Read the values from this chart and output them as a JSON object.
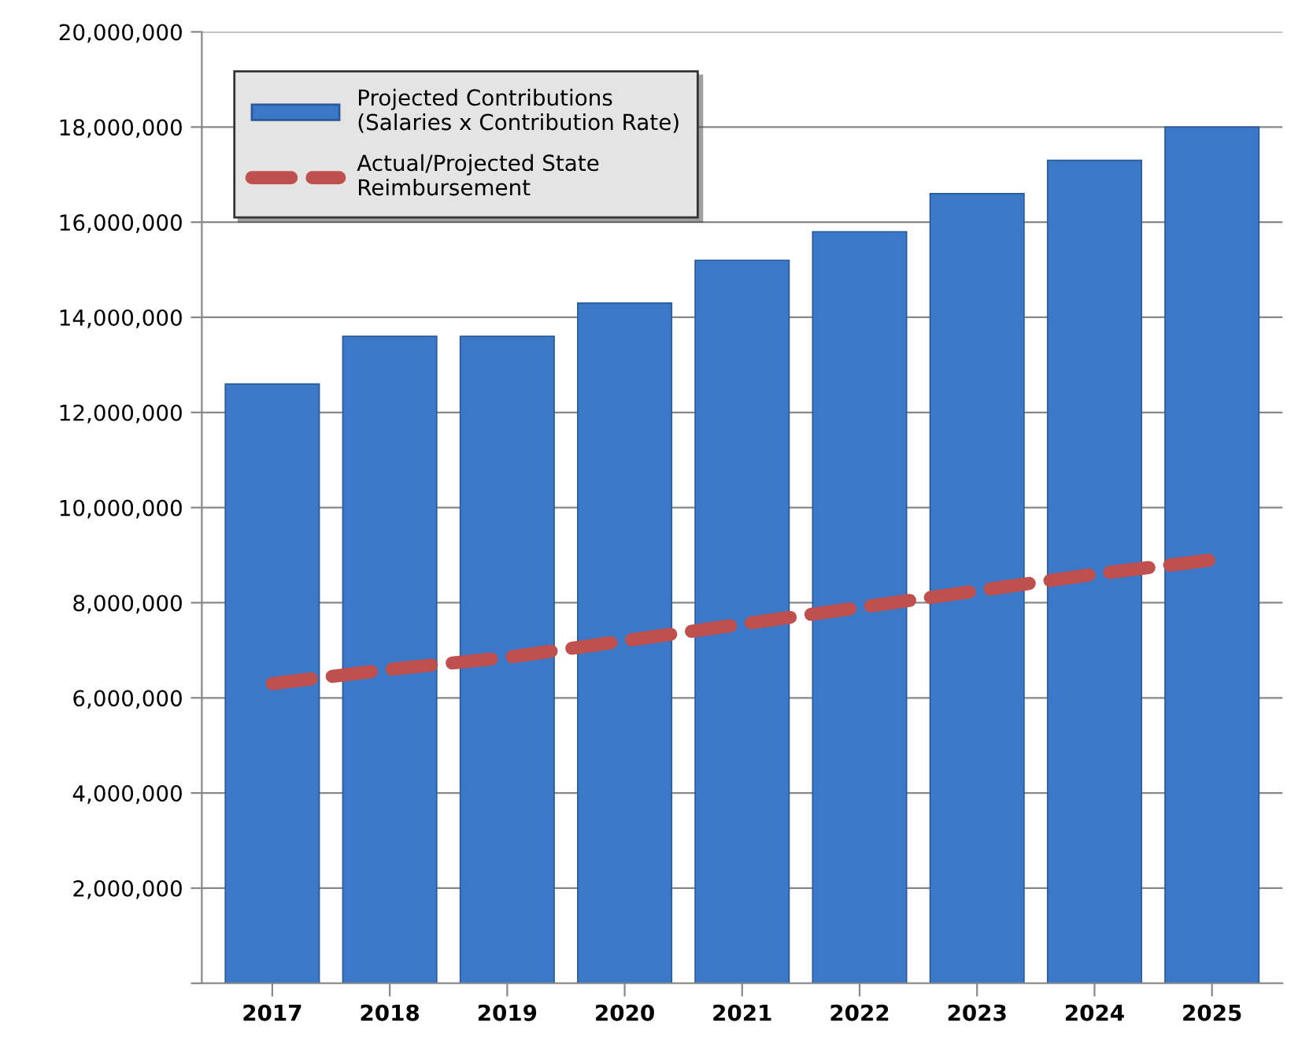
{
  "chart_data": {
    "type": "bar",
    "categories": [
      "2017",
      "2018",
      "2019",
      "2020",
      "2021",
      "2022",
      "2023",
      "2024",
      "2025"
    ],
    "series": [
      {
        "name": "Projected Contributions\n(Salaries x Contribution Rate)",
        "color": "#3b78c8",
        "values": [
          12600000,
          13600000,
          13600000,
          14300000,
          15200000,
          15800000,
          16600000,
          17300000,
          18000000
        ]
      },
      {
        "name": "Actual/Projected State\nReimbursement",
        "type": "line",
        "color": "#c0504d",
        "line_style": "dashed",
        "values": [
          6300000,
          6600000,
          6850000,
          7200000,
          7550000,
          7900000,
          8250000,
          8600000,
          8900000
        ]
      }
    ],
    "ylim": [
      0,
      20000000
    ],
    "yticks": [
      {
        "value": 0,
        "label": null
      },
      {
        "value": 2000000,
        "label": "2,000,000"
      },
      {
        "value": 4000000,
        "label": "4,000,000"
      },
      {
        "value": 6000000,
        "label": "6,000,000"
      },
      {
        "value": 8000000,
        "label": "8,000,000"
      },
      {
        "value": 10000000,
        "label": "10,000,000"
      },
      {
        "value": 12000000,
        "label": "12,000,000"
      },
      {
        "value": 14000000,
        "label": "14,000,000"
      },
      {
        "value": 16000000,
        "label": "16,000,000"
      },
      {
        "value": 18000000,
        "label": "18,000,000"
      },
      {
        "value": 20000000,
        "label": "20,000,000"
      }
    ],
    "grid": "y",
    "legend": "top left"
  }
}
